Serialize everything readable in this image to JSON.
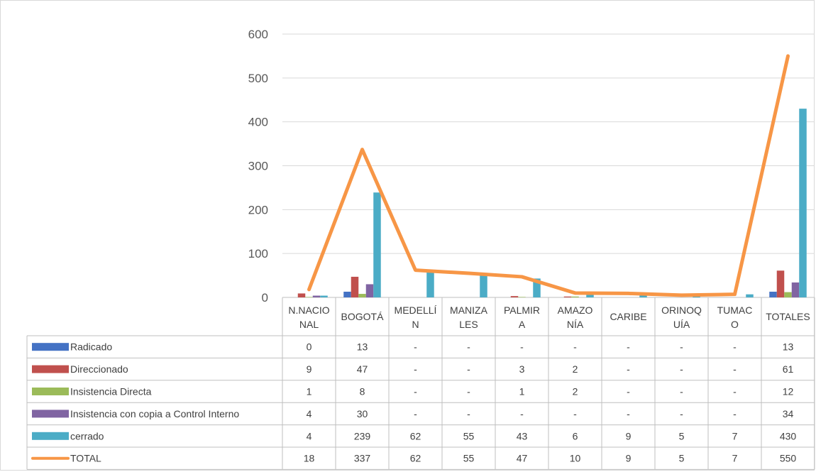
{
  "chart_data": {
    "type": "bar",
    "categories": [
      [
        "N.NACIO",
        "NAL"
      ],
      [
        "BOGOTÁ"
      ],
      [
        "MEDELLÍ",
        "N"
      ],
      [
        "MANIZA",
        "LES"
      ],
      [
        "PALMIR",
        "A"
      ],
      [
        "AMAZO",
        "NÍA"
      ],
      [
        "CARIBE"
      ],
      [
        "ORINOQ",
        "UÍA"
      ],
      [
        "TUMAC",
        "O"
      ],
      [
        "TOTALES"
      ]
    ],
    "ylim": [
      0,
      600
    ],
    "yticks": [
      "0",
      "100",
      "200",
      "300",
      "400",
      "500",
      "600"
    ],
    "grid": true,
    "series": [
      {
        "name": "Radicado",
        "type": "bar",
        "color": "#4472c4",
        "values": [
          0,
          13,
          null,
          null,
          null,
          null,
          null,
          null,
          null,
          13
        ],
        "display": [
          "0",
          "13",
          "-",
          "-",
          "-",
          "-",
          "-",
          "-",
          "-",
          "13"
        ]
      },
      {
        "name": "Direccionado",
        "type": "bar",
        "color": "#c0504d",
        "values": [
          9,
          47,
          null,
          null,
          3,
          2,
          null,
          null,
          null,
          61
        ],
        "display": [
          "9",
          "47",
          "-",
          "-",
          "3",
          "2",
          "-",
          "-",
          "-",
          "61"
        ]
      },
      {
        "name": "Insistencia Directa",
        "type": "bar",
        "color": "#9bbb59",
        "values": [
          1,
          8,
          null,
          null,
          1,
          2,
          null,
          null,
          null,
          12
        ],
        "display": [
          "1",
          "8",
          "-",
          "-",
          "1",
          "2",
          "-",
          "-",
          "-",
          "12"
        ]
      },
      {
        "name": "Insistencia con copia a Control Interno",
        "type": "bar",
        "color": "#8064a2",
        "values": [
          4,
          30,
          null,
          null,
          null,
          null,
          null,
          null,
          null,
          34
        ],
        "display": [
          "4",
          "30",
          "-",
          "-",
          "-",
          "-",
          "-",
          "-",
          "-",
          "34"
        ]
      },
      {
        "name": "cerrado",
        "type": "bar",
        "color": "#4bacc6",
        "values": [
          4,
          239,
          62,
          55,
          43,
          6,
          9,
          5,
          7,
          430
        ],
        "display": [
          "4",
          "239",
          "62",
          "55",
          "43",
          "6",
          "9",
          "5",
          "7",
          "430"
        ]
      },
      {
        "name": "TOTAL",
        "type": "line",
        "color": "#f79646",
        "values": [
          18,
          337,
          62,
          55,
          47,
          10,
          9,
          5,
          7,
          550
        ],
        "display": [
          "18",
          "337",
          "62",
          "55",
          "47",
          "10",
          "9",
          "5",
          "7",
          "550"
        ]
      }
    ]
  }
}
